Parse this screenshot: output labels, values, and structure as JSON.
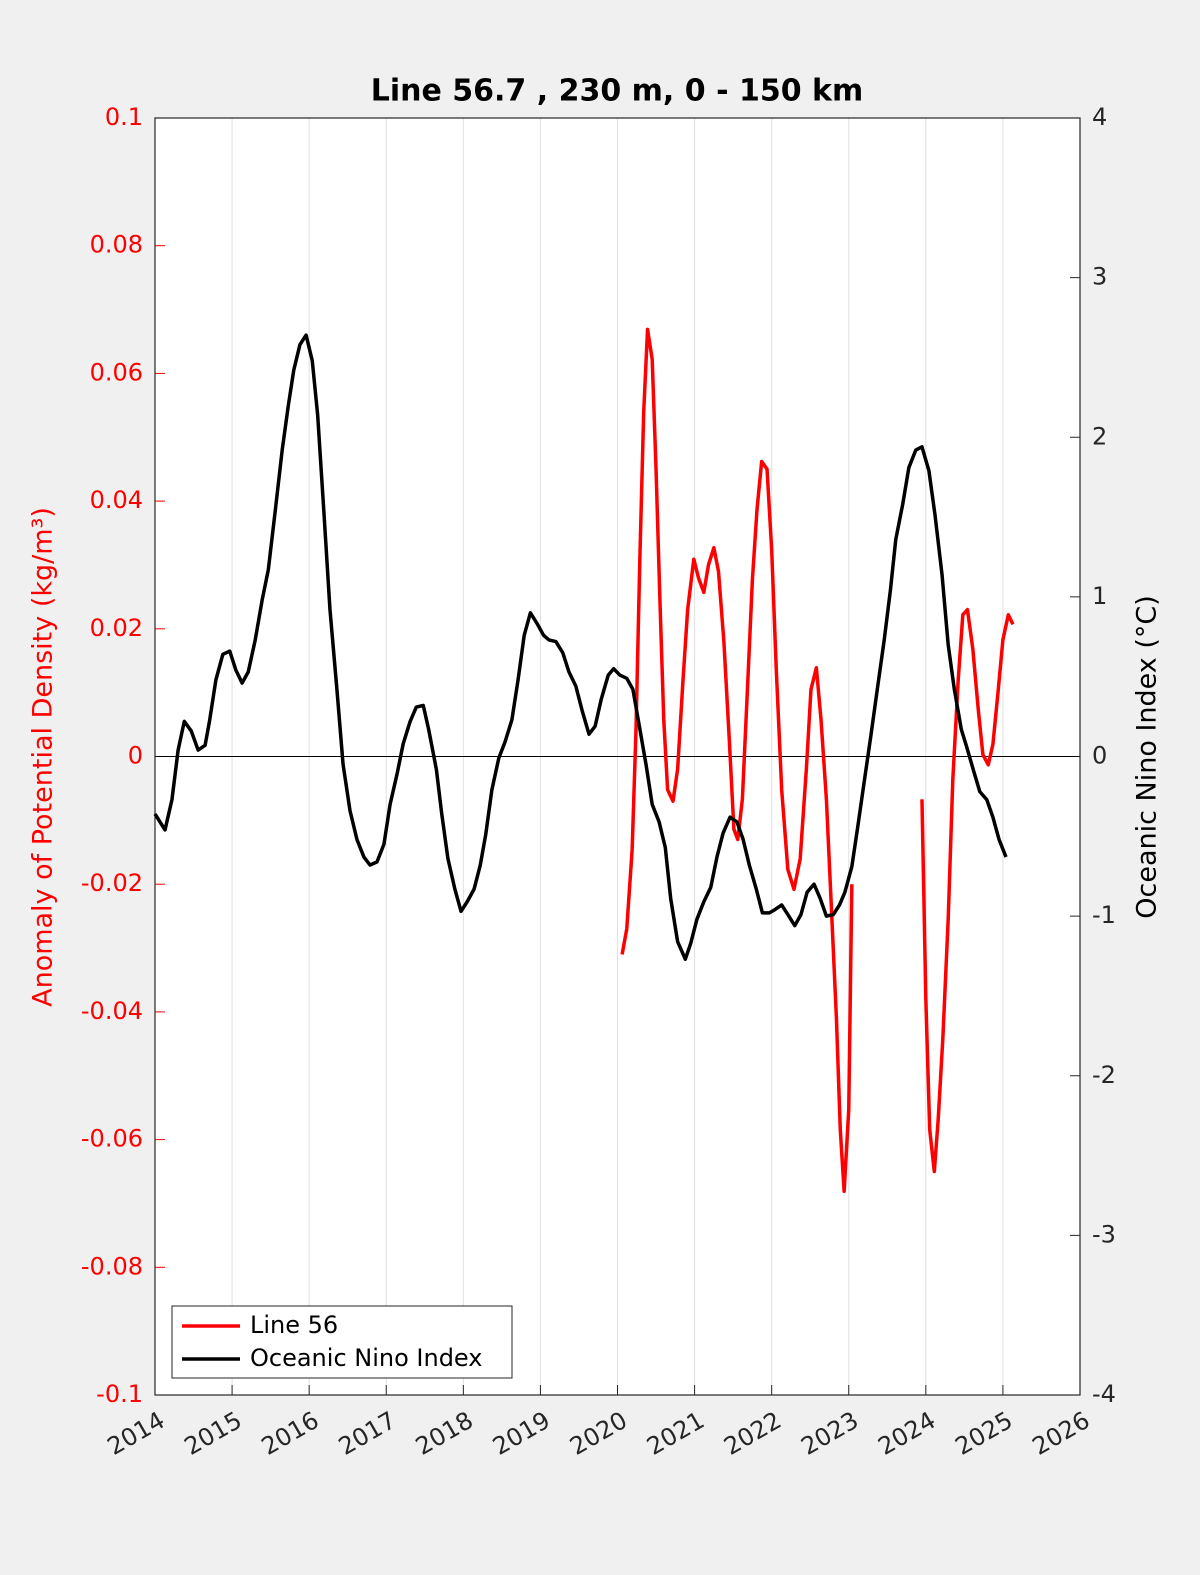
{
  "chart_data": {
    "type": "line",
    "title": "Line 56.7 , 230 m, 0 - 150 km",
    "y_label": "Anomaly of Potential Density (kg/m³)",
    "y2_label": "Oceanic Nino Index (°C)",
    "xlim": [
      2014,
      2026
    ],
    "xticks": [
      2014,
      2015,
      2016,
      2017,
      2018,
      2019,
      2020,
      2021,
      2022,
      2023,
      2024,
      2025,
      2026
    ],
    "ylim": [
      -0.1,
      0.1
    ],
    "yticks": [
      -0.1,
      -0.08,
      -0.06,
      -0.04,
      -0.02,
      0,
      0.02,
      0.04,
      0.06,
      0.08,
      0.1
    ],
    "y2lim": [
      -4,
      4
    ],
    "y2ticks": [
      -4,
      -3,
      -2,
      -1,
      0,
      1,
      2,
      3,
      4
    ],
    "grid": true,
    "hline": 0,
    "legend": "lower left",
    "y_color": "#ff0000",
    "series": [
      {
        "name": "Line 56",
        "color": "#ff0000",
        "x": [
          2020.06,
          2020.12,
          2020.19,
          2020.24,
          2020.29,
          2020.34,
          2020.39,
          2020.45,
          2020.5,
          2020.55,
          2020.6,
          2020.65,
          2020.72,
          2020.78,
          2020.85,
          2020.91,
          2020.99,
          2021.05,
          2021.12,
          2021.18,
          2021.25,
          2021.31,
          2021.38,
          2021.45,
          2021.51,
          2021.56,
          2021.62,
          2021.68,
          2021.75,
          2021.81,
          2021.87,
          2021.94,
          2022.0,
          2022.06,
          2022.13,
          2022.21,
          2022.29,
          2022.37,
          2022.45,
          2022.51,
          2022.58,
          2022.64,
          2022.71,
          2022.77,
          2022.84,
          2022.89,
          2022.94,
          2023.0,
          2023.04,
          2023.5,
          2023.95,
          2024.0,
          2024.05,
          2024.11,
          2024.16,
          2024.22,
          2024.29,
          2024.35,
          2024.42,
          2024.48,
          2024.54,
          2024.61,
          2024.68,
          2024.74,
          2024.81,
          2024.87,
          2024.94,
          2025.0,
          2025.07,
          2025.13
        ],
        "values": [
          -0.031,
          -0.027,
          -0.0146,
          0.0042,
          0.031,
          0.054,
          0.0669,
          0.0622,
          0.045,
          0.0246,
          0.0058,
          -0.0052,
          -0.007,
          -0.002,
          0.012,
          0.023,
          0.0309,
          0.028,
          0.0257,
          0.03,
          0.0327,
          0.029,
          0.018,
          0.0027,
          -0.0114,
          -0.013,
          -0.0067,
          0.009,
          0.0277,
          0.0387,
          0.0462,
          0.045,
          0.0324,
          0.0136,
          -0.0052,
          -0.0177,
          -0.0208,
          -0.016,
          -0.002,
          0.0105,
          0.0139,
          0.0058,
          -0.0067,
          -0.0224,
          -0.041,
          -0.0584,
          -0.0681,
          -0.0553,
          -0.02,
          null,
          -0.0067,
          -0.038,
          -0.0584,
          -0.065,
          -0.0569,
          -0.0443,
          -0.0255,
          -0.0036,
          0.012,
          0.0222,
          0.023,
          0.0168,
          0.0074,
          0.0003,
          -0.0013,
          0.0019,
          0.0105,
          0.0183,
          0.0222,
          0.0207
        ]
      },
      {
        "name": "Oceanic Nino Index",
        "color": "#000000",
        "axis": "y2",
        "x": [
          2014.0,
          2014.13,
          2014.22,
          2014.3,
          2014.38,
          2014.47,
          2014.56,
          2014.65,
          2014.71,
          2014.79,
          2014.88,
          2014.97,
          2015.05,
          2015.13,
          2015.21,
          2015.3,
          2015.39,
          2015.47,
          2015.56,
          2015.65,
          2015.73,
          2015.8,
          2015.88,
          2015.96,
          2016.04,
          2016.11,
          2016.19,
          2016.27,
          2016.36,
          2016.44,
          2016.53,
          2016.62,
          2016.71,
          2016.79,
          2016.88,
          2016.97,
          2017.05,
          2017.14,
          2017.22,
          2017.31,
          2017.39,
          2017.48,
          2017.55,
          2017.65,
          2017.72,
          2017.8,
          2017.89,
          2017.97,
          2018.05,
          2018.14,
          2018.22,
          2018.29,
          2018.37,
          2018.46,
          2018.54,
          2018.63,
          2018.71,
          2018.79,
          2018.87,
          2018.96,
          2019.04,
          2019.11,
          2019.2,
          2019.29,
          2019.37,
          2019.46,
          2019.54,
          2019.63,
          2019.71,
          2019.79,
          2019.88,
          2019.95,
          2020.03,
          2020.12,
          2020.2,
          2020.28,
          2020.37,
          2020.45,
          2020.54,
          2020.62,
          2020.69,
          2020.78,
          2020.88,
          2020.95,
          2021.03,
          2021.12,
          2021.21,
          2021.29,
          2021.37,
          2021.46,
          2021.55,
          2021.63,
          2021.71,
          2021.8,
          2021.88,
          2021.97,
          2022.04,
          2022.13,
          2022.21,
          2022.3,
          2022.38,
          2022.46,
          2022.55,
          2022.63,
          2022.71,
          2022.8,
          2022.88,
          2022.95,
          2023.04,
          2023.12,
          2023.2,
          2023.29,
          2023.37,
          2023.46,
          2023.54,
          2023.61,
          2023.7,
          2023.78,
          2023.87,
          2023.95,
          2024.04,
          2024.12,
          2024.21,
          2024.29,
          2024.37,
          2024.46,
          2024.53,
          2024.62,
          2024.7,
          2024.79,
          2024.87,
          2024.95,
          2025.04
        ],
        "values": [
          -0.36,
          -0.46,
          -0.27,
          0.04,
          0.22,
          0.16,
          0.04,
          0.07,
          0.23,
          0.48,
          0.64,
          0.66,
          0.54,
          0.46,
          0.53,
          0.73,
          0.98,
          1.17,
          1.54,
          1.92,
          2.2,
          2.42,
          2.58,
          2.64,
          2.48,
          2.14,
          1.54,
          0.92,
          0.42,
          -0.05,
          -0.34,
          -0.52,
          -0.63,
          -0.68,
          -0.66,
          -0.55,
          -0.3,
          -0.11,
          0.08,
          0.22,
          0.31,
          0.32,
          0.17,
          -0.08,
          -0.36,
          -0.64,
          -0.83,
          -0.97,
          -0.91,
          -0.83,
          -0.68,
          -0.49,
          -0.21,
          -0.01,
          0.09,
          0.23,
          0.48,
          0.76,
          0.9,
          0.83,
          0.76,
          0.73,
          0.72,
          0.65,
          0.53,
          0.44,
          0.29,
          0.14,
          0.19,
          0.36,
          0.51,
          0.55,
          0.51,
          0.49,
          0.42,
          0.2,
          -0.05,
          -0.3,
          -0.41,
          -0.57,
          -0.89,
          -1.16,
          -1.27,
          -1.17,
          -1.02,
          -0.91,
          -0.82,
          -0.63,
          -0.48,
          -0.38,
          -0.41,
          -0.52,
          -0.68,
          -0.83,
          -0.98,
          -0.98,
          -0.96,
          -0.93,
          -0.99,
          -1.06,
          -0.99,
          -0.85,
          -0.8,
          -0.89,
          -1.0,
          -0.99,
          -0.93,
          -0.85,
          -0.69,
          -0.43,
          -0.16,
          0.14,
          0.42,
          0.73,
          1.04,
          1.36,
          1.58,
          1.81,
          1.92,
          1.94,
          1.79,
          1.51,
          1.14,
          0.7,
          0.42,
          0.17,
          0.06,
          -0.09,
          -0.22,
          -0.27,
          -0.38,
          -0.52,
          -0.63
        ]
      }
    ]
  }
}
